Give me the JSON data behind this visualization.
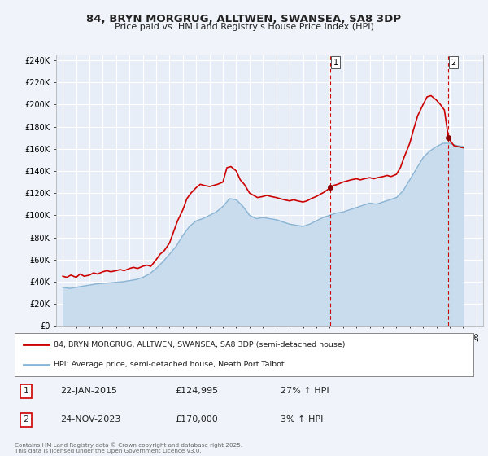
{
  "title": "84, BRYN MORGRUG, ALLTWEN, SWANSEA, SA8 3DP",
  "subtitle": "Price paid vs. HM Land Registry's House Price Index (HPI)",
  "hpi_label": "HPI: Average price, semi-detached house, Neath Port Talbot",
  "property_label": "84, BRYN MORGRUG, ALLTWEN, SWANSEA, SA8 3DP (semi-detached house)",
  "footer": "Contains HM Land Registry data © Crown copyright and database right 2025.\nThis data is licensed under the Open Government Licence v3.0.",
  "hpi_color": "#8ab4d4",
  "hpi_fill_color": "#c8dced",
  "property_color": "#cc0000",
  "marker_color": "#8B0000",
  "vline_color": "#cc0000",
  "bg_color": "#f0f4fa",
  "plot_bg": "#e8eef8",
  "grid_color": "#ffffff",
  "xlim": [
    1994.5,
    2026.5
  ],
  "ylim": [
    0,
    245000
  ],
  "yticks": [
    0,
    20000,
    40000,
    60000,
    80000,
    100000,
    120000,
    140000,
    160000,
    180000,
    200000,
    220000,
    240000
  ],
  "xticks": [
    1995,
    1996,
    1997,
    1998,
    1999,
    2000,
    2001,
    2002,
    2003,
    2004,
    2005,
    2006,
    2007,
    2008,
    2009,
    2010,
    2011,
    2012,
    2013,
    2014,
    2015,
    2016,
    2017,
    2018,
    2019,
    2020,
    2021,
    2022,
    2023,
    2024,
    2025,
    2026
  ],
  "sale1_x": 2015.06,
  "sale1_y": 124995,
  "sale2_x": 2023.9,
  "sale2_y": 170000,
  "vline1_x": 2015.06,
  "vline2_x": 2023.9,
  "hpi_data": [
    [
      1995.0,
      35000
    ],
    [
      1995.5,
      34000
    ],
    [
      1996.0,
      35000
    ],
    [
      1996.5,
      36000
    ],
    [
      1997.0,
      37000
    ],
    [
      1997.5,
      38000
    ],
    [
      1998.0,
      38500
    ],
    [
      1998.5,
      39000
    ],
    [
      1999.0,
      39500
    ],
    [
      1999.5,
      40000
    ],
    [
      2000.0,
      41000
    ],
    [
      2000.5,
      42000
    ],
    [
      2001.0,
      44000
    ],
    [
      2001.5,
      47000
    ],
    [
      2002.0,
      52000
    ],
    [
      2002.5,
      58000
    ],
    [
      2003.0,
      65000
    ],
    [
      2003.5,
      72000
    ],
    [
      2004.0,
      82000
    ],
    [
      2004.5,
      90000
    ],
    [
      2005.0,
      95000
    ],
    [
      2005.5,
      97000
    ],
    [
      2006.0,
      100000
    ],
    [
      2006.5,
      103000
    ],
    [
      2007.0,
      108000
    ],
    [
      2007.5,
      115000
    ],
    [
      2008.0,
      114000
    ],
    [
      2008.5,
      108000
    ],
    [
      2009.0,
      100000
    ],
    [
      2009.5,
      97000
    ],
    [
      2010.0,
      98000
    ],
    [
      2010.5,
      97000
    ],
    [
      2011.0,
      96000
    ],
    [
      2011.5,
      94000
    ],
    [
      2012.0,
      92000
    ],
    [
      2012.5,
      91000
    ],
    [
      2013.0,
      90000
    ],
    [
      2013.5,
      92000
    ],
    [
      2014.0,
      95000
    ],
    [
      2014.5,
      98000
    ],
    [
      2015.0,
      100000
    ],
    [
      2015.5,
      102000
    ],
    [
      2016.0,
      103000
    ],
    [
      2016.5,
      105000
    ],
    [
      2017.0,
      107000
    ],
    [
      2017.5,
      109000
    ],
    [
      2018.0,
      111000
    ],
    [
      2018.5,
      110000
    ],
    [
      2019.0,
      112000
    ],
    [
      2019.5,
      114000
    ],
    [
      2020.0,
      116000
    ],
    [
      2020.5,
      122000
    ],
    [
      2021.0,
      132000
    ],
    [
      2021.5,
      142000
    ],
    [
      2022.0,
      152000
    ],
    [
      2022.5,
      158000
    ],
    [
      2023.0,
      162000
    ],
    [
      2023.5,
      165000
    ],
    [
      2024.0,
      165000
    ],
    [
      2024.5,
      163000
    ],
    [
      2025.0,
      162000
    ]
  ],
  "property_data": [
    [
      1995.0,
      45000
    ],
    [
      1995.3,
      44000
    ],
    [
      1995.6,
      46000
    ],
    [
      1996.0,
      44000
    ],
    [
      1996.3,
      47000
    ],
    [
      1996.6,
      45000
    ],
    [
      1997.0,
      46000
    ],
    [
      1997.3,
      48000
    ],
    [
      1997.6,
      47000
    ],
    [
      1998.0,
      49000
    ],
    [
      1998.3,
      50000
    ],
    [
      1998.6,
      49000
    ],
    [
      1999.0,
      50000
    ],
    [
      1999.3,
      51000
    ],
    [
      1999.6,
      50000
    ],
    [
      2000.0,
      52000
    ],
    [
      2000.3,
      53000
    ],
    [
      2000.6,
      52000
    ],
    [
      2001.0,
      54000
    ],
    [
      2001.3,
      55000
    ],
    [
      2001.6,
      54000
    ],
    [
      2002.0,
      60000
    ],
    [
      2002.3,
      65000
    ],
    [
      2002.6,
      68000
    ],
    [
      2003.0,
      75000
    ],
    [
      2003.3,
      85000
    ],
    [
      2003.6,
      95000
    ],
    [
      2004.0,
      105000
    ],
    [
      2004.3,
      115000
    ],
    [
      2004.6,
      120000
    ],
    [
      2005.0,
      125000
    ],
    [
      2005.3,
      128000
    ],
    [
      2005.6,
      127000
    ],
    [
      2006.0,
      126000
    ],
    [
      2006.3,
      127000
    ],
    [
      2006.6,
      128000
    ],
    [
      2007.0,
      130000
    ],
    [
      2007.3,
      143000
    ],
    [
      2007.6,
      144000
    ],
    [
      2008.0,
      140000
    ],
    [
      2008.3,
      132000
    ],
    [
      2008.6,
      128000
    ],
    [
      2009.0,
      120000
    ],
    [
      2009.3,
      118000
    ],
    [
      2009.6,
      116000
    ],
    [
      2010.0,
      117000
    ],
    [
      2010.3,
      118000
    ],
    [
      2010.6,
      117000
    ],
    [
      2011.0,
      116000
    ],
    [
      2011.3,
      115000
    ],
    [
      2011.6,
      114000
    ],
    [
      2012.0,
      113000
    ],
    [
      2012.3,
      114000
    ],
    [
      2012.6,
      113000
    ],
    [
      2013.0,
      112000
    ],
    [
      2013.3,
      113000
    ],
    [
      2013.6,
      115000
    ],
    [
      2014.0,
      117000
    ],
    [
      2014.3,
      119000
    ],
    [
      2014.6,
      121000
    ],
    [
      2015.06,
      124995
    ],
    [
      2015.3,
      127000
    ],
    [
      2015.6,
      128000
    ],
    [
      2016.0,
      130000
    ],
    [
      2016.3,
      131000
    ],
    [
      2016.6,
      132000
    ],
    [
      2017.0,
      133000
    ],
    [
      2017.3,
      132000
    ],
    [
      2017.6,
      133000
    ],
    [
      2018.0,
      134000
    ],
    [
      2018.3,
      133000
    ],
    [
      2018.6,
      134000
    ],
    [
      2019.0,
      135000
    ],
    [
      2019.3,
      136000
    ],
    [
      2019.6,
      135000
    ],
    [
      2020.0,
      137000
    ],
    [
      2020.3,
      143000
    ],
    [
      2020.6,
      153000
    ],
    [
      2021.0,
      165000
    ],
    [
      2021.3,
      178000
    ],
    [
      2021.6,
      190000
    ],
    [
      2022.0,
      200000
    ],
    [
      2022.3,
      207000
    ],
    [
      2022.6,
      208000
    ],
    [
      2023.0,
      204000
    ],
    [
      2023.3,
      200000
    ],
    [
      2023.6,
      195000
    ],
    [
      2023.9,
      170000
    ],
    [
      2024.0,
      168000
    ],
    [
      2024.3,
      163000
    ],
    [
      2024.6,
      162000
    ],
    [
      2025.0,
      161000
    ]
  ],
  "row_data": [
    [
      "1",
      "22-JAN-2015",
      "£124,995",
      "27% ↑ HPI"
    ],
    [
      "2",
      "24-NOV-2023",
      "£170,000",
      "3% ↑ HPI"
    ]
  ]
}
